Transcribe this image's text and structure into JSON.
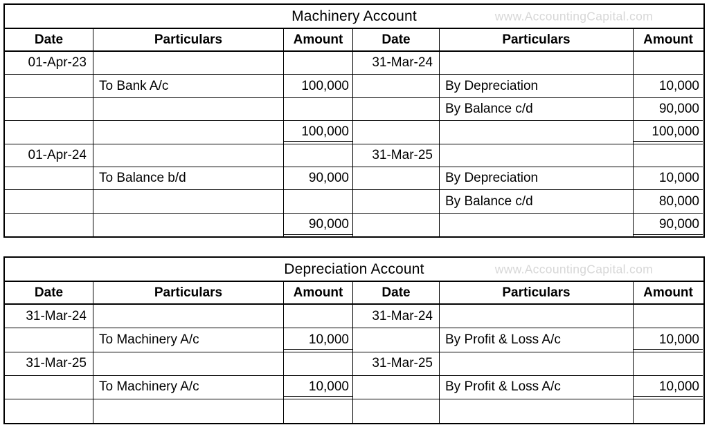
{
  "watermark": "www.AccountingCapital.com",
  "columns": [
    "Date",
    "Particulars",
    "Amount",
    "Date",
    "Particulars",
    "Amount"
  ],
  "tables": [
    {
      "title": "Machinery Account",
      "rows": [
        {
          "ldate": "01-Apr-23",
          "lpart": "",
          "lamt": "",
          "rdate": "31-Mar-24",
          "rpart": "",
          "ramt": "",
          "total": false
        },
        {
          "ldate": "",
          "lpart": "To Bank A/c",
          "lamt": "100,000",
          "rdate": "",
          "rpart": "By Depreciation",
          "ramt": "10,000",
          "total": false
        },
        {
          "ldate": "",
          "lpart": "",
          "lamt": "",
          "rdate": "",
          "rpart": "By Balance c/d",
          "ramt": "90,000",
          "total": false
        },
        {
          "ldate": "",
          "lpart": "",
          "lamt": "100,000",
          "rdate": "",
          "rpart": "",
          "ramt": "100,000",
          "total": true
        },
        {
          "ldate": "01-Apr-24",
          "lpart": "",
          "lamt": "",
          "rdate": "31-Mar-25",
          "rpart": "",
          "ramt": "",
          "total": false
        },
        {
          "ldate": "",
          "lpart": "To Balance b/d",
          "lamt": "90,000",
          "rdate": "",
          "rpart": "By Depreciation",
          "ramt": "10,000",
          "total": false
        },
        {
          "ldate": "",
          "lpart": "",
          "lamt": "",
          "rdate": "",
          "rpart": "By Balance c/d",
          "ramt": "80,000",
          "total": false
        },
        {
          "ldate": "",
          "lpart": "",
          "lamt": "90,000",
          "rdate": "",
          "rpart": "",
          "ramt": "90,000",
          "total": true
        }
      ]
    },
    {
      "title": "Depreciation Account",
      "rows": [
        {
          "ldate": "31-Mar-24",
          "lpart": "",
          "lamt": "",
          "rdate": "31-Mar-24",
          "rpart": "",
          "ramt": "",
          "total": false
        },
        {
          "ldate": "",
          "lpart": "To Machinery A/c",
          "lamt": "10,000",
          "rdate": "",
          "rpart": "By Profit & Loss A/c",
          "ramt": "10,000",
          "total": true
        },
        {
          "ldate": "31-Mar-25",
          "lpart": "",
          "lamt": "",
          "rdate": "31-Mar-25",
          "rpart": "",
          "ramt": "",
          "total": false
        },
        {
          "ldate": "",
          "lpart": "To Machinery A/c",
          "lamt": "10,000",
          "rdate": "",
          "rpart": "By Profit & Loss A/c",
          "ramt": "10,000",
          "total": true
        },
        {
          "ldate": "",
          "lpart": "",
          "lamt": "",
          "rdate": "",
          "rpart": "",
          "ramt": "",
          "total": false
        }
      ]
    }
  ]
}
